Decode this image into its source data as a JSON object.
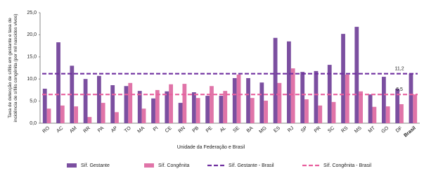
{
  "chart_data": {
    "type": "bar",
    "y_label": "Taxa de detecção de sífilis em gestante e taxa de incidência de sífilis congênita (por mil nascidos vivos)",
    "x_label": "Unidade da Federação e Brasil",
    "categories": [
      "RO",
      "AC",
      "AM",
      "RR",
      "PA",
      "AP",
      "TO",
      "MA",
      "PI",
      "CE",
      "RN",
      "PB",
      "PE",
      "AL",
      "SE",
      "BA",
      "MG",
      "ES",
      "RJ",
      "SP",
      "PR",
      "SC",
      "RS",
      "MS",
      "MT",
      "GO",
      "DF",
      "Brasil"
    ],
    "series": [
      {
        "name": "Síf. Gestante",
        "color": "#7b4fa0",
        "values": [
          7.8,
          18.3,
          13.0,
          10.0,
          10.7,
          8.6,
          8.4,
          7.3,
          5.6,
          7.2,
          4.6,
          7.0,
          6.2,
          6.2,
          10.2,
          10.2,
          9.2,
          19.3,
          18.5,
          11.6,
          11.8,
          13.2,
          20.2,
          21.8,
          6.5,
          10.5,
          7.8,
          11.2
        ]
      },
      {
        "name": "Síf. Congênita",
        "color": "#e074a8",
        "values": [
          3.3,
          4.0,
          3.8,
          1.4,
          4.6,
          2.5,
          9.1,
          3.3,
          7.5,
          8.8,
          8.9,
          5.7,
          8.4,
          7.3,
          11.0,
          5.7,
          5.1,
          9.1,
          12.4,
          5.4,
          4.0,
          4.8,
          11.0,
          7.2,
          3.7,
          3.8,
          4.3,
          6.5
        ]
      }
    ],
    "reference_lines": [
      {
        "name": "Síf. Gestante - Brasil",
        "value": 11.2,
        "label": "11,2",
        "color": "#7030a0"
      },
      {
        "name": "Síf. Congênita - Brasil",
        "value": 6.5,
        "label": "6,5",
        "color": "#e8609e"
      }
    ],
    "ylim": [
      0,
      25
    ],
    "yticks": [
      {
        "value": 0,
        "label": "0,0"
      },
      {
        "value": 5,
        "label": "5,0"
      },
      {
        "value": 10,
        "label": "10,0"
      },
      {
        "value": 15,
        "label": "15,0"
      },
      {
        "value": 20,
        "label": "20,0"
      },
      {
        "value": 25,
        "label": "25,0"
      }
    ]
  }
}
